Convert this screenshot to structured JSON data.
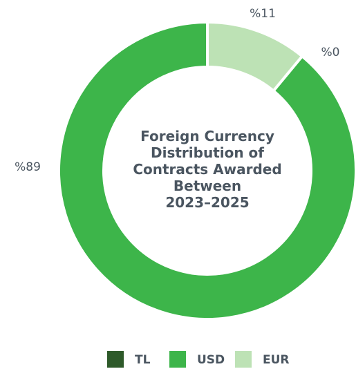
{
  "chart_data": {
    "type": "donut",
    "title": [
      "Foreign Currency",
      "Distribution of",
      "Contracts Awarded",
      "Between",
      "2023–2025"
    ],
    "categories": [
      "TL",
      "USD",
      "EUR"
    ],
    "values": [
      0,
      89,
      11
    ],
    "value_labels": [
      "%0",
      "%89",
      "%11"
    ],
    "colors": [
      "#2e5a2a",
      "#3db54a",
      "#bde2b5"
    ],
    "legend": "bottom"
  }
}
